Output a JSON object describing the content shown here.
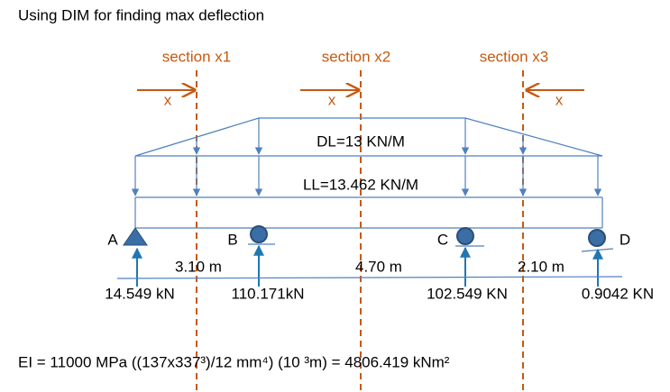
{
  "title": "Using DIM for finding max deflection",
  "sections": [
    {
      "label": "section x1",
      "x": "x"
    },
    {
      "label": "section x2",
      "x": "x"
    },
    {
      "label": "section x3",
      "x": "x"
    }
  ],
  "loads": {
    "dl": "DL=13  KN/M",
    "ll": "LL=13.462  KN/M"
  },
  "supports": [
    "A",
    "B",
    "C",
    "D"
  ],
  "spans": [
    "3.10 m",
    "4.70 m",
    "2.10 m"
  ],
  "reactions": [
    "14.549 kN",
    "110.171kN",
    "102.549  KN",
    "0.9042 KN"
  ],
  "formula": "EI = 11000 MPa ((137x337³)/12  mm⁴) (10 ³m) = 4806.419 kNm²"
}
